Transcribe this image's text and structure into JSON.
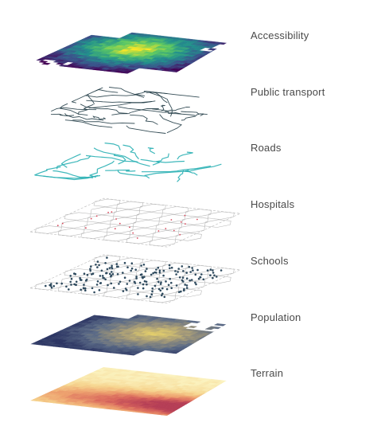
{
  "figure": {
    "layers": [
      {
        "id": "accessibility",
        "label": "Accessibility",
        "icon": "heatmap-layer",
        "palette": [
          "#440154",
          "#3b528b",
          "#21918c",
          "#5ec962",
          "#fde725"
        ]
      },
      {
        "id": "public-transport",
        "label": "Public transport",
        "icon": "network-layer",
        "palette": [
          "#1f3a44"
        ]
      },
      {
        "id": "roads",
        "label": "Roads",
        "icon": "network-layer",
        "palette": [
          "#2ab0b4"
        ]
      },
      {
        "id": "hospitals",
        "label": "Hospitals",
        "icon": "hex-grid-layer",
        "palette": [
          "#b9b9b9",
          "#d9475a"
        ]
      },
      {
        "id": "schools",
        "label": "Schools",
        "icon": "hex-grid-layer",
        "palette": [
          "#b9b9b9",
          "#2e4a5e"
        ]
      },
      {
        "id": "population",
        "label": "Population",
        "icon": "heatmap-layer",
        "palette": [
          "#2c3563",
          "#5a6a86",
          "#a59a78",
          "#e8d26a"
        ]
      },
      {
        "id": "terrain",
        "label": "Terrain",
        "icon": "heatmap-layer",
        "palette": [
          "#fbf3c0",
          "#f6d58f",
          "#eea36f",
          "#d9675c",
          "#b23a55"
        ]
      }
    ]
  }
}
